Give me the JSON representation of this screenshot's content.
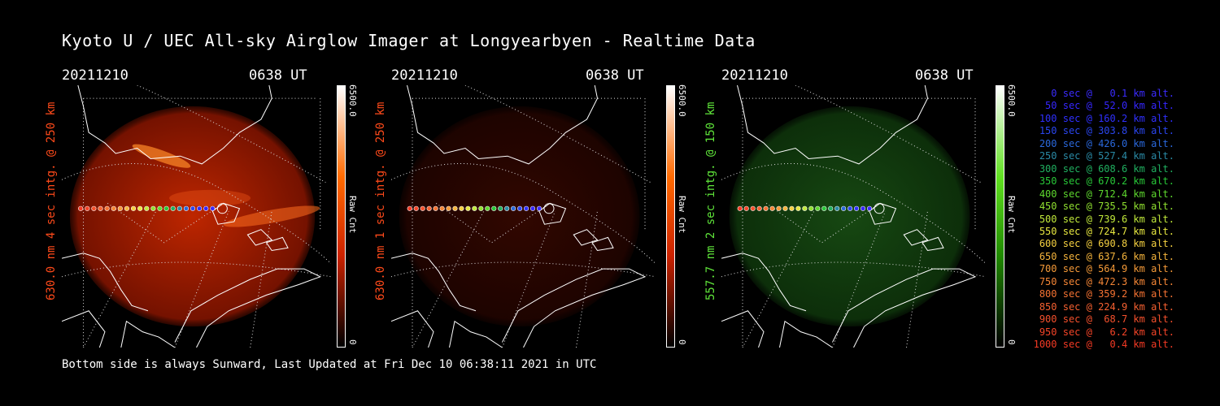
{
  "title": "Kyoto U / UEC All-sky Airglow Imager at Longyearbyen - Realtime Data",
  "footer": "Bottom side is always Sunward, Last Updated at Fri Dec 10 06:38:11 2021 in UTC",
  "colors": {
    "red": "#ff4a1a",
    "green": "#5fe53a"
  },
  "panels": [
    {
      "date": "20211210",
      "time": "0638 UT",
      "channel_label": "630.0 nm 4 sec intg. @ 250 km",
      "colorbar_max": "6500.0",
      "colorbar_unit": "Raw Cnt",
      "colorbar_min": "0",
      "color": "#ff4a1a"
    },
    {
      "date": "20211210",
      "time": "0638 UT",
      "channel_label": "630.0 nm 1 sec intg. @ 250 km",
      "colorbar_max": "6500.0",
      "colorbar_unit": "Raw Cnt",
      "colorbar_min": "0",
      "color": "#ff4a1a"
    },
    {
      "date": "20211210",
      "time": "0638 UT",
      "channel_label": "557.7 nm 2 sec intg. @ 150 km",
      "colorbar_max": "6500.0",
      "colorbar_unit": "Raw Cnt",
      "colorbar_min": "0",
      "color": "#5fe53a"
    }
  ],
  "legend": [
    {
      "text": "0 sec @   0.1 km alt.",
      "color": "#3b2bff"
    },
    {
      "text": "50 sec @  52.0 km alt.",
      "color": "#3526ff"
    },
    {
      "text": "100 sec @ 160.2 km alt.",
      "color": "#2f30ff"
    },
    {
      "text": "150 sec @ 303.8 km alt.",
      "color": "#2a46f0"
    },
    {
      "text": "200 sec @ 426.0 km alt.",
      "color": "#2a68dc"
    },
    {
      "text": "250 sec @ 527.4 km alt.",
      "color": "#2a8aa6"
    },
    {
      "text": "300 sec @ 608.6 km alt.",
      "color": "#20b060"
    },
    {
      "text": "350 sec @ 670.2 km alt.",
      "color": "#28c838"
    },
    {
      "text": "400 sec @ 712.4 km alt.",
      "color": "#5ed82e"
    },
    {
      "text": "450 sec @ 735.5 km alt.",
      "color": "#90e030"
    },
    {
      "text": "500 sec @ 739.6 km alt.",
      "color": "#c0e83a"
    },
    {
      "text": "550 sec @ 724.7 km alt.",
      "color": "#e8e840"
    },
    {
      "text": "600 sec @ 690.8 km alt.",
      "color": "#f5d040"
    },
    {
      "text": "650 sec @ 637.6 km alt.",
      "color": "#f5b43c"
    },
    {
      "text": "700 sec @ 564.9 km alt.",
      "color": "#f59a38"
    },
    {
      "text": "750 sec @ 472.3 km alt.",
      "color": "#f58636"
    },
    {
      "text": "800 sec @ 359.2 km alt.",
      "color": "#f57232"
    },
    {
      "text": "850 sec @ 224.9 km alt.",
      "color": "#f56030"
    },
    {
      "text": "900 sec @  68.7 km alt.",
      "color": "#f5502c"
    },
    {
      "text": "950 sec @   6.2 km alt.",
      "color": "#f54428"
    },
    {
      "text": "1000 sec @   0.4 km alt.",
      "color": "#f53a24"
    }
  ]
}
